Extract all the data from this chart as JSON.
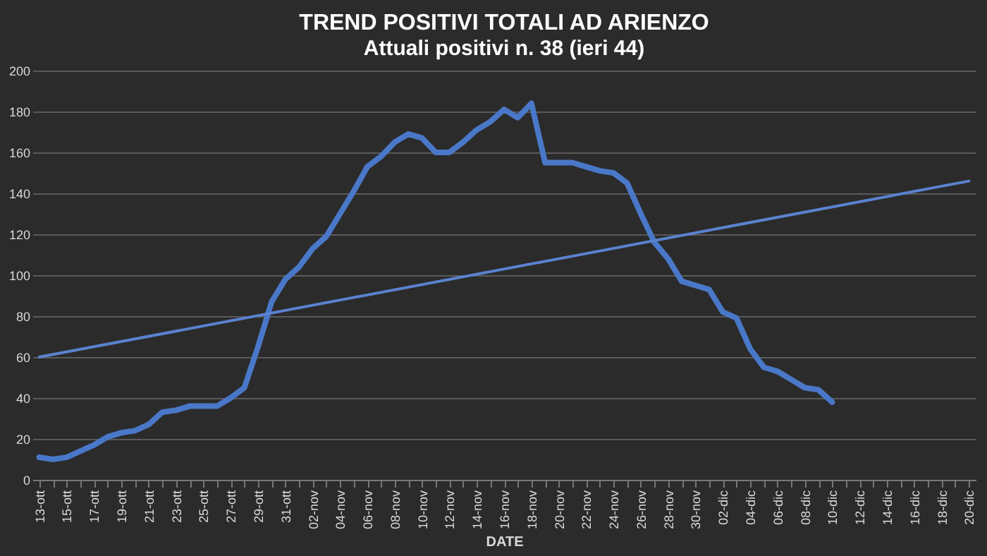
{
  "chart_data": {
    "type": "line",
    "title": "TREND  POSITIVI  TOTALI  AD ARIENZO",
    "subtitle": "Attuali positivi  n. 38  (ieri 44)",
    "xlabel": "DATE",
    "categories": [
      "13-ott",
      null,
      "15-ott",
      null,
      "17-ott",
      null,
      "19-ott",
      null,
      "21-ott",
      null,
      "23-ott",
      null,
      "25-ott",
      null,
      "27-ott",
      null,
      "29-ott",
      null,
      "31-ott",
      null,
      "02-nov",
      null,
      "04-nov",
      null,
      "06-nov",
      null,
      "08-nov",
      null,
      "10-nov",
      null,
      "12-nov",
      null,
      "14-nov",
      null,
      "16-nov",
      null,
      "18-nov",
      null,
      "20-nov",
      null,
      "22-nov",
      null,
      "24-nov",
      null,
      "26-nov",
      null,
      "28-nov",
      null,
      "30-nov",
      null,
      "02-dic",
      null,
      "04-dic",
      null,
      "06-dic",
      null,
      "08-dic",
      null,
      "10-dic",
      null,
      "12-dic",
      null,
      "14-dic",
      null,
      "16-dic",
      null,
      "18-dic",
      null,
      "20-dic"
    ],
    "series": [
      {
        "color": "#4a78c8",
        "values": [
          11,
          10,
          11,
          14,
          17,
          21,
          23,
          24,
          27,
          33,
          34,
          36,
          36,
          36,
          40,
          45,
          65,
          87,
          98,
          104,
          113,
          119,
          130,
          141,
          153,
          158,
          165,
          169,
          167,
          160,
          160,
          165,
          171,
          175,
          181,
          177,
          184,
          155,
          155,
          155,
          153,
          151,
          150,
          145,
          130,
          116,
          108,
          97,
          95,
          93,
          82,
          79,
          64,
          55,
          53,
          49,
          45,
          44,
          38,
          null,
          null,
          null,
          null,
          null,
          null,
          null,
          null,
          null,
          null
        ]
      },
      {
        "color": "#5b82d0",
        "values": [
          60,
          null,
          null,
          null,
          null,
          null,
          null,
          null,
          null,
          null,
          null,
          null,
          null,
          null,
          null,
          null,
          null,
          null,
          null,
          null,
          null,
          null,
          null,
          null,
          null,
          null,
          null,
          null,
          null,
          null,
          null,
          null,
          null,
          null,
          null,
          null,
          null,
          null,
          null,
          null,
          null,
          null,
          null,
          null,
          null,
          null,
          null,
          null,
          null,
          null,
          null,
          null,
          null,
          null,
          null,
          null,
          null,
          null,
          null,
          null,
          null,
          null,
          null,
          null,
          null,
          null,
          null,
          null,
          146
        ]
      }
    ],
    "ylim": [
      0,
      200
    ],
    "yticks": [
      0,
      20,
      40,
      60,
      80,
      100,
      120,
      140,
      160,
      180,
      200
    ],
    "grid": "y"
  }
}
